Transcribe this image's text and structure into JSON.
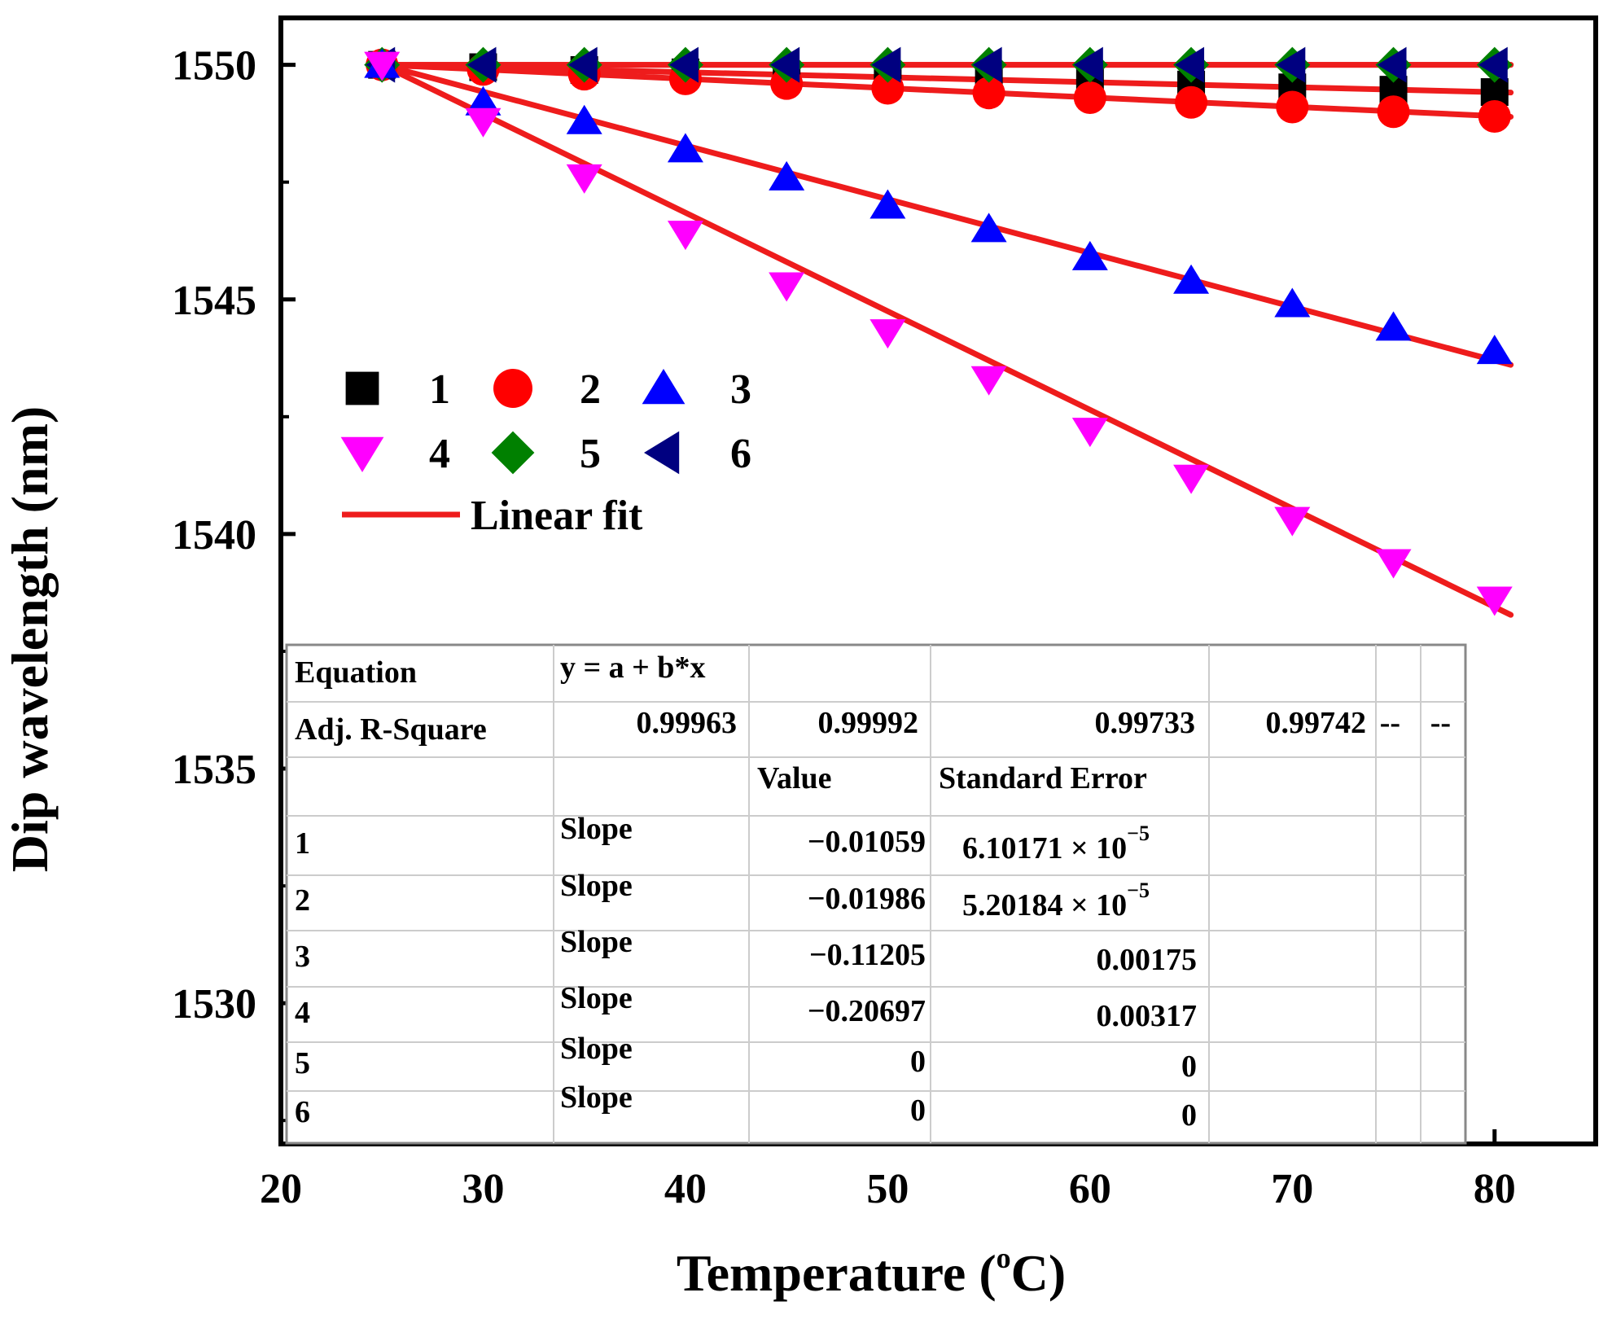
{
  "chart_data": {
    "type": "scatter",
    "title": "",
    "xlabel": "Temperature (",
    "xlabel_super": "o",
    "xlabel_suffix": "C)",
    "ylabel": "Dip wavelength (nm)",
    "xlim": [
      20,
      85
    ],
    "ylim": [
      1527,
      1551
    ],
    "x_ticks": [
      20,
      30,
      40,
      50,
      60,
      70,
      80
    ],
    "y_ticks": [
      1530,
      1535,
      1540,
      1545,
      1550
    ],
    "x": [
      25,
      30,
      35,
      40,
      45,
      50,
      55,
      60,
      65,
      70,
      75,
      80
    ],
    "series": [
      {
        "name": "1",
        "marker": "square",
        "color": "#000000",
        "values": [
          1550,
          1549.95,
          1549.89,
          1549.84,
          1549.79,
          1549.73,
          1549.68,
          1549.63,
          1549.58,
          1549.52,
          1549.47,
          1549.42
        ],
        "fit": {
          "intercept": 1550.265,
          "slope": -0.01059
        }
      },
      {
        "name": "2",
        "marker": "circle",
        "color": "#ff0000",
        "values": [
          1550,
          1549.9,
          1549.8,
          1549.7,
          1549.6,
          1549.5,
          1549.4,
          1549.3,
          1549.2,
          1549.1,
          1549.0,
          1548.9
        ],
        "fit": {
          "intercept": 1550.497,
          "slope": -0.01986
        }
      },
      {
        "name": "3",
        "marker": "triangle-up",
        "color": "#0000ff",
        "values": [
          1550,
          1549.2,
          1548.8,
          1548.2,
          1547.6,
          1547.0,
          1546.5,
          1545.9,
          1545.4,
          1544.9,
          1544.4,
          1543.9
        ],
        "fit": {
          "intercept": 1552.66,
          "slope": -0.11205
        }
      },
      {
        "name": "4",
        "marker": "triangle-down",
        "color": "#ff00ff",
        "values": [
          1550,
          1548.8,
          1547.6,
          1546.4,
          1545.3,
          1544.3,
          1543.3,
          1542.2,
          1541.2,
          1540.3,
          1539.4,
          1538.6
        ],
        "fit": {
          "intercept": 1555.0,
          "slope": -0.20697
        }
      },
      {
        "name": "5",
        "marker": "diamond",
        "color": "#008000",
        "values": [
          1550,
          1550,
          1550,
          1550,
          1550,
          1550,
          1550,
          1550,
          1550,
          1550,
          1550,
          1550
        ],
        "fit": {
          "intercept": 1550,
          "slope": 0
        }
      },
      {
        "name": "6",
        "marker": "triangle-left",
        "color": "#000080",
        "values": [
          1550,
          1550,
          1550,
          1550,
          1550,
          1550,
          1550,
          1550,
          1550,
          1550,
          1550,
          1550
        ],
        "fit": {
          "intercept": 1550,
          "slope": 0
        }
      }
    ],
    "fit_color": "#ee1c1c",
    "legend": {
      "items": [
        "1",
        "2",
        "3",
        "4",
        "5",
        "6"
      ],
      "fit_label": "Linear fit",
      "position": "middle-left"
    },
    "fit_table": {
      "equation_label": "Equation",
      "equation": "y = a + b*x",
      "adj_r_label": "Adj. R-Square",
      "adj_r_values": [
        "0.99963",
        "0.99992",
        "0.99733",
        "0.99742",
        "--",
        "--"
      ],
      "value_header": "Value",
      "se_header": "Standard Error",
      "rows": [
        {
          "name": "1",
          "param": "Slope",
          "value": "−0.01059",
          "se_mantissa": "6.10171 ×",
          "se_base": "10",
          "se_exp": "−5"
        },
        {
          "name": "2",
          "param": "Slope",
          "value": "−0.01986",
          "se_mantissa": "5.20184 ×",
          "se_base": "10",
          "se_exp": "−5"
        },
        {
          "name": "3",
          "param": "Slope",
          "value": "−0.11205",
          "se": "0.00175"
        },
        {
          "name": "4",
          "param": "Slope",
          "value": "−0.20697",
          "se": "0.00317"
        },
        {
          "name": "5",
          "param": "Slope",
          "value": "0",
          "se": "0"
        },
        {
          "name": "6",
          "param": "Slope",
          "value": "0",
          "se": "0"
        }
      ]
    }
  }
}
